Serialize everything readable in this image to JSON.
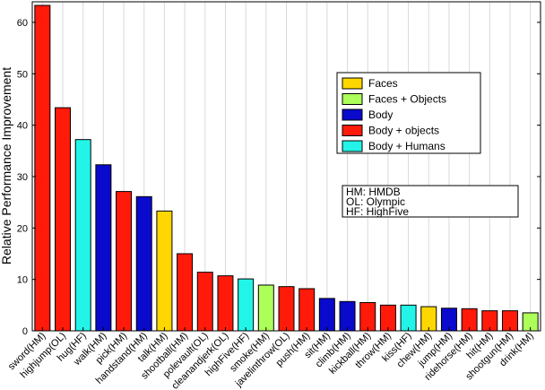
{
  "chart_data": {
    "type": "bar",
    "ylabel": "Relative Performance Improvement",
    "ylim": [
      0,
      64
    ],
    "yticks": [
      0,
      10,
      20,
      30,
      40,
      50,
      60
    ],
    "grid": "vertical",
    "categories": [
      "sword(HM)",
      "highjump(OL)",
      "hug(HF)",
      "walk(HM)",
      "pick(HM)",
      "handstand(HM)",
      "talk(HM)",
      "shootball(HM)",
      "polevault(OL)",
      "cleanandjerk(OL)",
      "highFive(HF)",
      "smoke(HM)",
      "javelinthrow(OL)",
      "push(HM)",
      "sit(HM)",
      "climb(HM)",
      "kickball(HM)",
      "throw(HM)",
      "kiss(HF)",
      "chew(HM)",
      "jump(HM)",
      "ridehorse(HM)",
      "hit(HM)",
      "shootgun(HM)",
      "drink(HM)"
    ],
    "values": [
      63.3,
      43.4,
      37.2,
      32.3,
      27.1,
      26.1,
      23.3,
      15.0,
      11.4,
      10.7,
      10.1,
      8.9,
      8.6,
      8.2,
      6.3,
      5.7,
      5.5,
      5.0,
      5.0,
      4.7,
      4.4,
      4.3,
      3.9,
      3.9,
      3.5
    ],
    "groups": [
      "Body + objects",
      "Body + objects",
      "Body + Humans",
      "Body",
      "Body + objects",
      "Body",
      "Faces",
      "Body + objects",
      "Body + objects",
      "Body + objects",
      "Body + Humans",
      "Faces + Objects",
      "Body + objects",
      "Body + objects",
      "Body",
      "Body",
      "Body + objects",
      "Body + objects",
      "Body + Humans",
      "Faces",
      "Body",
      "Body + objects",
      "Body + objects",
      "Body + objects",
      "Faces + Objects"
    ],
    "legend": [
      {
        "name": "Faces",
        "color": "#FFD700"
      },
      {
        "name": "Faces + Objects",
        "color": "#ADFF5A"
      },
      {
        "name": "Body",
        "color": "#0A0ACC"
      },
      {
        "name": "Body + objects",
        "color": "#FF1A0A"
      },
      {
        "name": "Body + Humans",
        "color": "#22F5E8"
      }
    ],
    "legend_position": "upper-right",
    "notes": [
      "HM: HMDB",
      "OL: Olympic",
      "HF: HighFive"
    ]
  }
}
